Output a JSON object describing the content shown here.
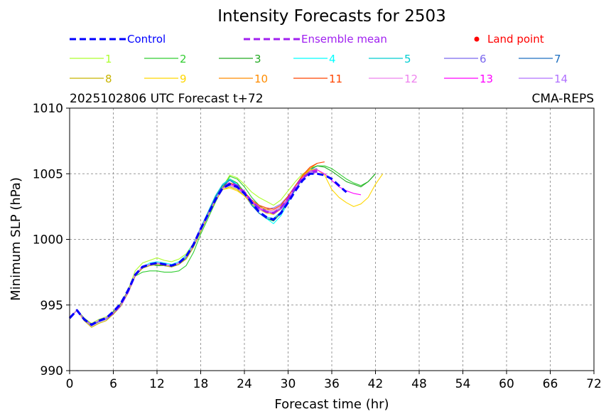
{
  "chart_data": {
    "type": "line",
    "title": "Intensity Forecasts for 2503",
    "subtitle_left": "2025102806 UTC Forecast t+72",
    "subtitle_right": "CMA-REPS",
    "xlabel": "Forecast time (hr)",
    "ylabel": "Minimum SLP (hPa)",
    "xlim": [
      0,
      72
    ],
    "ylim": [
      990,
      1010
    ],
    "xticks": [
      "0",
      "6",
      "12",
      "18",
      "24",
      "30",
      "36",
      "42",
      "48",
      "54",
      "60",
      "66",
      "72"
    ],
    "yticks": [
      "990",
      "995",
      "1000",
      "1005",
      "1010"
    ],
    "grid": true,
    "legend_top": [
      {
        "label": "Control",
        "color": "#0000ff",
        "style": "dashed"
      },
      {
        "label": "Ensemble mean",
        "color": "#a020f0",
        "style": "dashed"
      },
      {
        "label": "Land point",
        "color": "#ff0000",
        "style": "marker"
      }
    ],
    "x": [
      0,
      1,
      2,
      3,
      4,
      5,
      6,
      7,
      8,
      9,
      10,
      11,
      12,
      13,
      14,
      15,
      16,
      17,
      18,
      19,
      20,
      21,
      22,
      23,
      24,
      25,
      26,
      27,
      28,
      29,
      30,
      31,
      32,
      33,
      34,
      35,
      36,
      37,
      38,
      39,
      40,
      41,
      42,
      43
    ],
    "series": [
      {
        "name": "1",
        "color": "#adff2f",
        "values": [
          994.1,
          994.6,
          994.0,
          993.6,
          993.9,
          994.1,
          994.5,
          995.1,
          996.1,
          997.6,
          998.2,
          998.4,
          998.6,
          998.4,
          998.3,
          998.5,
          998.9,
          999.7,
          1000.9,
          1002.0,
          1003.0,
          1004.0,
          1004.9,
          1004.7,
          1004.2,
          1003.6,
          1003.2,
          1002.9,
          1002.6,
          1003.0,
          1003.7,
          1004.4,
          1005.0,
          1005.3,
          1005.2,
          null,
          null,
          null,
          null,
          null,
          null,
          null,
          null,
          null
        ]
      },
      {
        "name": "2",
        "color": "#32cd32",
        "values": [
          994.0,
          994.6,
          994.0,
          993.5,
          993.8,
          994.0,
          994.4,
          995.0,
          996.0,
          997.2,
          997.5,
          997.6,
          997.6,
          997.5,
          997.5,
          997.6,
          998.0,
          999.0,
          1000.4,
          1001.6,
          1002.8,
          1003.9,
          1004.8,
          1004.6,
          1004.0,
          1003.2,
          1002.6,
          1002.2,
          1001.9,
          1002.4,
          1003.2,
          1004.1,
          1004.8,
          1005.4,
          1005.6,
          1005.6,
          1005.4,
          1005.0,
          1004.6,
          1004.3,
          1004.1,
          1004.4,
          1005.0,
          null
        ]
      },
      {
        "name": "3",
        "color": "#22aa22",
        "values": [
          994.0,
          994.6,
          994.0,
          993.5,
          993.7,
          994.0,
          994.5,
          995.1,
          996.1,
          997.3,
          997.9,
          998.1,
          998.0,
          998.0,
          997.9,
          998.1,
          998.6,
          999.6,
          1000.8,
          1001.9,
          1003.0,
          1003.9,
          1004.6,
          1004.3,
          1003.6,
          1002.8,
          1002.0,
          1001.6,
          1001.4,
          1002.0,
          1002.9,
          1003.9,
          1004.7,
          1005.3,
          1005.6,
          1005.5,
          1005.2,
          1004.8,
          1004.4,
          1004.2,
          1004.0,
          1004.4,
          1005.0,
          null
        ]
      },
      {
        "name": "4",
        "color": "#00ffff",
        "values": [
          994.0,
          994.6,
          993.9,
          993.5,
          993.8,
          994.0,
          994.4,
          995.0,
          996.0,
          997.3,
          997.9,
          998.2,
          998.3,
          998.2,
          998.1,
          998.3,
          998.8,
          999.7,
          1000.9,
          1002.0,
          1003.1,
          1004.1,
          1004.6,
          1004.2,
          1003.5,
          1002.7,
          1002.0,
          1001.6,
          1001.2,
          1001.8,
          1002.8,
          1003.8,
          1004.6,
          1005.1,
          1005.3,
          null,
          null,
          null,
          null,
          null,
          null,
          null,
          null,
          null
        ]
      },
      {
        "name": "5",
        "color": "#00ced1",
        "values": [
          994.0,
          994.6,
          993.9,
          993.5,
          993.8,
          994.0,
          994.4,
          995.0,
          996.0,
          997.3,
          997.8,
          998.0,
          998.1,
          998.0,
          997.9,
          998.1,
          998.6,
          999.6,
          1000.9,
          1002.1,
          1003.3,
          1004.2,
          1004.6,
          1004.1,
          1003.4,
          1002.6,
          1002.0,
          1001.7,
          1001.6,
          1002.1,
          1003.0,
          1003.9,
          1004.6,
          1005.2,
          1005.4,
          null,
          null,
          null,
          null,
          null,
          null,
          null,
          null,
          null
        ]
      },
      {
        "name": "6",
        "color": "#7b68ee",
        "values": [
          994.0,
          994.6,
          993.9,
          993.4,
          993.7,
          993.9,
          994.3,
          994.9,
          995.9,
          997.2,
          997.8,
          998.0,
          998.1,
          998.0,
          997.9,
          998.1,
          998.5,
          999.4,
          1000.6,
          1001.8,
          1003.0,
          1003.9,
          1004.3,
          1004.0,
          1003.5,
          1002.9,
          1002.5,
          1002.3,
          1002.4,
          1002.7,
          1003.3,
          1004.1,
          1004.8,
          1005.3,
          1005.4,
          null,
          null,
          null,
          null,
          null,
          null,
          null,
          null,
          null
        ]
      },
      {
        "name": "7",
        "color": "#1e6fc0",
        "values": [
          994.0,
          994.6,
          993.9,
          993.5,
          993.8,
          994.0,
          994.4,
          995.0,
          996.0,
          997.3,
          997.9,
          998.1,
          998.2,
          998.1,
          998.0,
          998.2,
          998.7,
          999.6,
          1000.8,
          1002.0,
          1003.2,
          1004.1,
          1004.5,
          1004.1,
          1003.4,
          1002.6,
          1002.0,
          1001.6,
          1001.5,
          1002.0,
          1002.9,
          1003.8,
          1004.6,
          1005.1,
          1005.3,
          null,
          null,
          null,
          null,
          null,
          null,
          null,
          null,
          null
        ]
      },
      {
        "name": "8",
        "color": "#c8b400",
        "values": [
          994.0,
          994.6,
          993.8,
          993.3,
          993.6,
          993.8,
          994.3,
          994.9,
          995.9,
          997.2,
          997.8,
          998.0,
          998.1,
          998.0,
          997.9,
          998.1,
          998.5,
          999.4,
          1000.6,
          1001.8,
          1002.9,
          1003.8,
          1004.0,
          1003.8,
          1003.3,
          1002.8,
          1002.4,
          1002.2,
          1002.2,
          1002.5,
          1003.2,
          1004.0,
          1004.7,
          1005.1,
          1005.2,
          null,
          null,
          null,
          null,
          null,
          null,
          null,
          null,
          null
        ]
      },
      {
        "name": "9",
        "color": "#ffd700",
        "values": [
          994.0,
          994.6,
          993.9,
          993.5,
          993.8,
          994.0,
          994.4,
          995.0,
          996.0,
          997.3,
          997.9,
          998.1,
          998.2,
          998.1,
          998.0,
          998.2,
          998.7,
          999.6,
          1000.8,
          1001.9,
          1003.0,
          1003.8,
          1003.9,
          1003.7,
          1003.3,
          1002.7,
          1002.3,
          1002.0,
          1001.9,
          1002.3,
          1003.1,
          1004.0,
          1004.8,
          1005.3,
          1005.3,
          1004.9,
          1003.8,
          1003.2,
          1002.8,
          1002.5,
          1002.7,
          1003.2,
          1004.2,
          1005.0
        ]
      },
      {
        "name": "10",
        "color": "#ff8c00",
        "values": [
          994.0,
          994.6,
          993.9,
          993.5,
          993.8,
          994.0,
          994.4,
          995.0,
          996.0,
          997.3,
          997.9,
          998.1,
          998.2,
          998.1,
          998.0,
          998.2,
          998.7,
          999.6,
          1000.8,
          1001.9,
          1003.0,
          1003.9,
          1004.2,
          1004.0,
          1003.5,
          1002.9,
          1002.5,
          1002.3,
          1002.2,
          1002.5,
          1003.2,
          1004.0,
          1004.8,
          1005.4,
          1005.8,
          null,
          null,
          null,
          null,
          null,
          null,
          null,
          null,
          null
        ]
      },
      {
        "name": "11",
        "color": "#ff4500",
        "values": [
          994.0,
          994.6,
          993.9,
          993.5,
          993.8,
          994.0,
          994.4,
          995.0,
          996.0,
          997.3,
          997.9,
          998.1,
          998.2,
          998.1,
          998.0,
          998.2,
          998.7,
          999.6,
          1000.8,
          1001.9,
          1003.0,
          1003.9,
          1004.3,
          1004.1,
          1003.6,
          1003.0,
          1002.6,
          1002.4,
          1002.3,
          1002.6,
          1003.3,
          1004.1,
          1004.9,
          1005.5,
          1005.8,
          1005.9,
          null,
          null,
          null,
          null,
          null,
          null,
          null,
          null
        ]
      },
      {
        "name": "12",
        "color": "#ee82ee",
        "values": [
          994.0,
          994.6,
          993.9,
          993.5,
          993.8,
          994.0,
          994.4,
          995.0,
          996.0,
          997.3,
          997.9,
          998.1,
          998.2,
          998.1,
          998.0,
          998.2,
          998.7,
          999.6,
          1000.8,
          1001.9,
          1003.0,
          1003.9,
          1004.1,
          1003.9,
          1003.4,
          1002.8,
          1002.4,
          1002.2,
          1002.2,
          1002.5,
          1003.2,
          1004.0,
          1004.7,
          1005.1,
          1005.2,
          null,
          null,
          null,
          null,
          null,
          null,
          null,
          null,
          null
        ]
      },
      {
        "name": "13",
        "color": "#ff00ff",
        "values": [
          994.0,
          994.6,
          993.9,
          993.5,
          993.8,
          994.0,
          994.4,
          995.0,
          996.0,
          997.3,
          997.9,
          998.1,
          998.2,
          998.1,
          998.0,
          998.2,
          998.7,
          999.6,
          1000.8,
          1001.9,
          1003.0,
          1003.9,
          1004.2,
          1004.0,
          1003.5,
          1002.9,
          1002.4,
          1002.1,
          1002.0,
          1002.3,
          1003.0,
          1003.9,
          1004.7,
          1005.2,
          1005.3,
          1005.0,
          1004.5,
          1004.0,
          1003.7,
          1003.5,
          1003.4,
          null,
          null,
          null
        ]
      },
      {
        "name": "14",
        "color": "#b070ff",
        "values": [
          994.0,
          994.6,
          993.9,
          993.5,
          993.8,
          994.0,
          994.4,
          995.0,
          996.0,
          997.3,
          997.9,
          998.1,
          998.2,
          998.1,
          998.0,
          998.2,
          998.7,
          999.6,
          1000.8,
          1001.9,
          1003.0,
          1003.9,
          1004.1,
          1003.9,
          1003.4,
          1002.8,
          1002.3,
          1002.1,
          1002.1,
          1002.4,
          1003.1,
          1003.9,
          1004.6,
          1005.0,
          1005.1,
          null,
          null,
          null,
          null,
          null,
          null,
          null,
          null,
          null
        ]
      },
      {
        "name": "Ensemble mean",
        "color": "#a020f0",
        "dashed": true,
        "values": [
          994.0,
          994.6,
          993.9,
          993.5,
          993.8,
          994.0,
          994.4,
          995.0,
          996.0,
          997.3,
          997.9,
          998.1,
          998.2,
          998.1,
          998.0,
          998.2,
          998.7,
          999.6,
          1000.8,
          1001.9,
          1003.0,
          1003.9,
          1004.3,
          1004.1,
          1003.6,
          1002.9,
          1002.4,
          1002.1,
          1002.0,
          1002.4,
          1003.1,
          1004.0,
          1004.7,
          1005.1,
          1005.2,
          null,
          null,
          null,
          null,
          null,
          null,
          null,
          null,
          null
        ]
      },
      {
        "name": "Control",
        "color": "#0000ff",
        "dashed": true,
        "values": [
          994.0,
          994.6,
          993.9,
          993.5,
          993.8,
          994.0,
          994.5,
          995.1,
          996.1,
          997.3,
          997.9,
          998.1,
          998.2,
          998.1,
          998.0,
          998.2,
          998.7,
          999.6,
          1000.8,
          1001.9,
          1003.0,
          1003.9,
          1004.2,
          1004.0,
          1003.5,
          1002.8,
          1002.1,
          1001.7,
          1001.5,
          1002.0,
          1002.8,
          1003.7,
          1004.5,
          1005.0,
          1005.0,
          1004.9,
          1004.6,
          1004.1,
          1003.6,
          null,
          null,
          null,
          null,
          null
        ]
      }
    ]
  }
}
